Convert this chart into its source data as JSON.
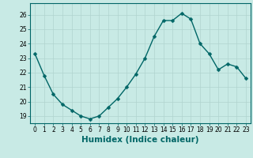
{
  "x": [
    0,
    1,
    2,
    3,
    4,
    5,
    6,
    7,
    8,
    9,
    10,
    11,
    12,
    13,
    14,
    15,
    16,
    17,
    18,
    19,
    20,
    21,
    22,
    23
  ],
  "y": [
    23.3,
    21.8,
    20.5,
    19.8,
    19.4,
    19.0,
    18.8,
    19.0,
    19.6,
    20.2,
    21.0,
    21.9,
    23.0,
    24.5,
    25.6,
    25.6,
    26.1,
    25.7,
    24.0,
    23.3,
    22.2,
    22.6,
    22.4,
    21.6
  ],
  "bg_color": "#c8eae5",
  "grid_color": "#b0d4cf",
  "line_color": "#006666",
  "marker_color": "#006666",
  "xlabel": "Humidex (Indice chaleur)",
  "ylim": [
    18.5,
    26.8
  ],
  "xlim": [
    -0.5,
    23.5
  ],
  "yticks": [
    19,
    20,
    21,
    22,
    23,
    24,
    25,
    26
  ],
  "xticks": [
    0,
    1,
    2,
    3,
    4,
    5,
    6,
    7,
    8,
    9,
    10,
    11,
    12,
    13,
    14,
    15,
    16,
    17,
    18,
    19,
    20,
    21,
    22,
    23
  ],
  "tick_fontsize": 5.5,
  "xlabel_fontsize": 7.5,
  "line_width": 1.0,
  "marker_size": 2.5
}
